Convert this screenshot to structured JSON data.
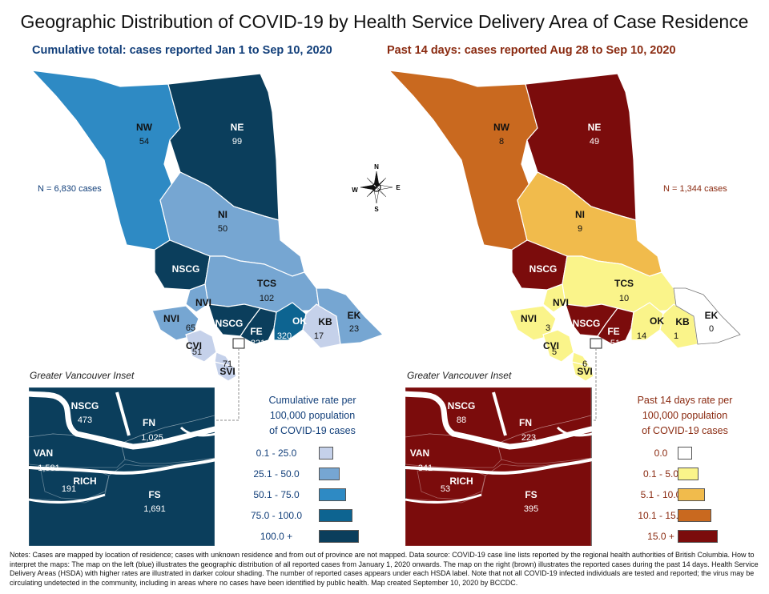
{
  "title": "Geographic Distribution of COVID-19 by Health Service Delivery Area of Case Residence",
  "colors": {
    "blue_scale": [
      "#c5d1ea",
      "#76a6d2",
      "#2e8ac4",
      "#0d6491",
      "#0b3e5c"
    ],
    "brown_scale": [
      "#ffffff",
      "#faf48a",
      "#f1bb4c",
      "#c9691f",
      "#7b0c0c"
    ],
    "left_subtitle": "#123f7a",
    "right_subtitle": "#8a2a10"
  },
  "left": {
    "subtitle": "Cumulative total: cases reported Jan 1 to Sep 10, 2020",
    "total_label": "N = 6,830 cases",
    "regions": [
      {
        "name": "NW",
        "value": "54",
        "class": 2
      },
      {
        "name": "NE",
        "value": "99",
        "class": 4
      },
      {
        "name": "NI",
        "value": "50",
        "class": 1
      },
      {
        "name": "NSCG",
        "value": "",
        "class": 4
      },
      {
        "name": "TCS",
        "value": "102",
        "class": 1
      },
      {
        "name": "NVI",
        "value": "",
        "class": 1
      },
      {
        "name": "NVI",
        "value": "65",
        "class": 1
      },
      {
        "name": "NSCG",
        "value": "",
        "class": 4
      },
      {
        "name": "FE",
        "value": "821",
        "class": 4
      },
      {
        "name": "OK",
        "value": "320",
        "class": 3
      },
      {
        "name": "KB",
        "value": "17",
        "class": 0
      },
      {
        "name": "EK",
        "value": "23",
        "class": 1
      },
      {
        "name": "CVI",
        "value": "51",
        "class": 0
      },
      {
        "name": "",
        "value": "71",
        "class": 0
      },
      {
        "name": "SVI",
        "value": "",
        "class": 0
      }
    ],
    "inset": {
      "title": "Greater Vancouver Inset",
      "regions": [
        {
          "name": "NSCG",
          "value": "473"
        },
        {
          "name": "FN",
          "value": "1,025"
        },
        {
          "name": "VAN",
          "value": "1,581"
        },
        {
          "name": "RICH",
          "value": "191"
        },
        {
          "name": "FS",
          "value": "1,691"
        }
      ]
    },
    "legend": {
      "title_lines": [
        "Cumulative rate per",
        "100,000 population",
        "of COVID-19 cases"
      ],
      "items": [
        "0.1 - 25.0",
        "25.1 - 50.0",
        "50.1 - 75.0",
        "75.0 - 100.0",
        "100.0 +"
      ]
    }
  },
  "right": {
    "subtitle": "Past 14 days: cases reported Aug 28 to Sep 10, 2020",
    "total_label": "N = 1,344 cases",
    "regions": [
      {
        "name": "NW",
        "value": "8",
        "class": 3
      },
      {
        "name": "NE",
        "value": "49",
        "class": 4
      },
      {
        "name": "NI",
        "value": "9",
        "class": 2
      },
      {
        "name": "NSCG",
        "value": "",
        "class": 4
      },
      {
        "name": "TCS",
        "value": "10",
        "class": 1
      },
      {
        "name": "NVI",
        "value": "",
        "class": 1
      },
      {
        "name": "NVI",
        "value": "3",
        "class": 1
      },
      {
        "name": "NSCG",
        "value": "",
        "class": 4
      },
      {
        "name": "FE",
        "value": "51",
        "class": 4
      },
      {
        "name": "OK",
        "value": "14",
        "class": 1
      },
      {
        "name": "KB",
        "value": "1",
        "class": 1
      },
      {
        "name": "EK",
        "value": "0",
        "class": 0
      },
      {
        "name": "CVI",
        "value": "5",
        "class": 1
      },
      {
        "name": "",
        "value": "6",
        "class": 1
      },
      {
        "name": "SVI",
        "value": "",
        "class": 1
      }
    ],
    "inset": {
      "title": "Greater Vancouver Inset",
      "regions": [
        {
          "name": "NSCG",
          "value": "88"
        },
        {
          "name": "FN",
          "value": "223"
        },
        {
          "name": "VAN",
          "value": "341"
        },
        {
          "name": "RICH",
          "value": "53"
        },
        {
          "name": "FS",
          "value": "395"
        }
      ]
    },
    "legend": {
      "title_lines": [
        "Past 14 days rate per",
        "100,000 population",
        "of COVID-19 cases"
      ],
      "items": [
        "0.0",
        "0.1 - 5.0",
        "5.1 - 10.0",
        "10.1 - 15.0",
        "15.0 +"
      ]
    }
  },
  "compass": {
    "n": "N",
    "s": "S",
    "e": "E",
    "w": "W"
  },
  "notes": "Notes: Cases are mapped by location of residence; cases with unknown residence and from out of province are not mapped. Data source: COVID-19 case line lists reported by the regional health authorities of British Columbia. How to interpret the maps: The map on the left (blue) illustrates the geographic distribution of all reported cases from January 1, 2020 onwards. The map on the right (brown) illustrates the reported cases during the past 14 days. Health Service Delivery Areas (HSDA) with higher rates are illustrated in darker colour shading. The number of reported cases appears under each HSDA label. Note that not all COVID-19 infected individuals are tested and reported; the virus may be circulating undetected in the community, including in areas where no cases have been identified by public health. Map created September 10, 2020 by BCCDC."
}
